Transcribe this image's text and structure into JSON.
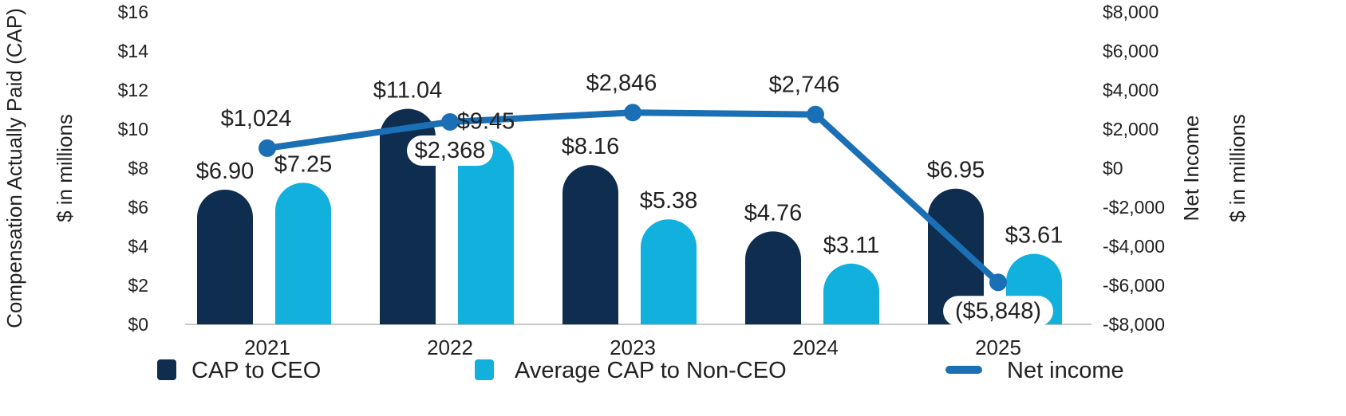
{
  "chart_data": {
    "type": "bar",
    "categories": [
      "2021",
      "2022",
      "2023",
      "2024",
      "2025"
    ],
    "series": [
      {
        "name": "CAP to CEO",
        "type": "bar",
        "axis": "left",
        "values": [
          6.9,
          11.04,
          8.16,
          4.76,
          6.95
        ],
        "labels": [
          "$6.90",
          "$11.04",
          "$8.16",
          "$4.76",
          "$6.95"
        ]
      },
      {
        "name": "Average CAP to Non-CEO",
        "type": "bar",
        "axis": "left",
        "values": [
          7.25,
          9.45,
          5.38,
          3.11,
          3.61
        ],
        "labels": [
          "$7.25",
          "$9.45",
          "$5.38",
          "$3.11",
          "$3.61"
        ]
      },
      {
        "name": "Net income",
        "type": "line",
        "axis": "right",
        "values": [
          1024,
          2368,
          2846,
          2746,
          -5848
        ],
        "labels": [
          "$1,024",
          "$2,368",
          "$2,846",
          "$2,746",
          "($5,848)"
        ]
      }
    ],
    "y_left": {
      "title": "Compensation Actually Paid (CAP)",
      "subtitle": "$ in millions",
      "ylim": [
        0,
        16
      ],
      "ticks": [
        "$0",
        "$2",
        "$4",
        "$6",
        "$8",
        "$10",
        "$12",
        "$14",
        "$16"
      ]
    },
    "y_right": {
      "title": "Net Income",
      "subtitle": "$ in millions",
      "ylim": [
        -8000,
        8000
      ],
      "ticks": [
        "-$8,000",
        "-$6,000",
        "-$4,000",
        "-$2,000",
        "$0",
        "$2,000",
        "$4,000",
        "$6,000",
        "$8,000"
      ]
    },
    "grid": false,
    "legend": "bottom",
    "colors": {
      "ceo": "#0e2d4f",
      "nonceo": "#12b0dc",
      "net": "#1a6fb5"
    }
  }
}
